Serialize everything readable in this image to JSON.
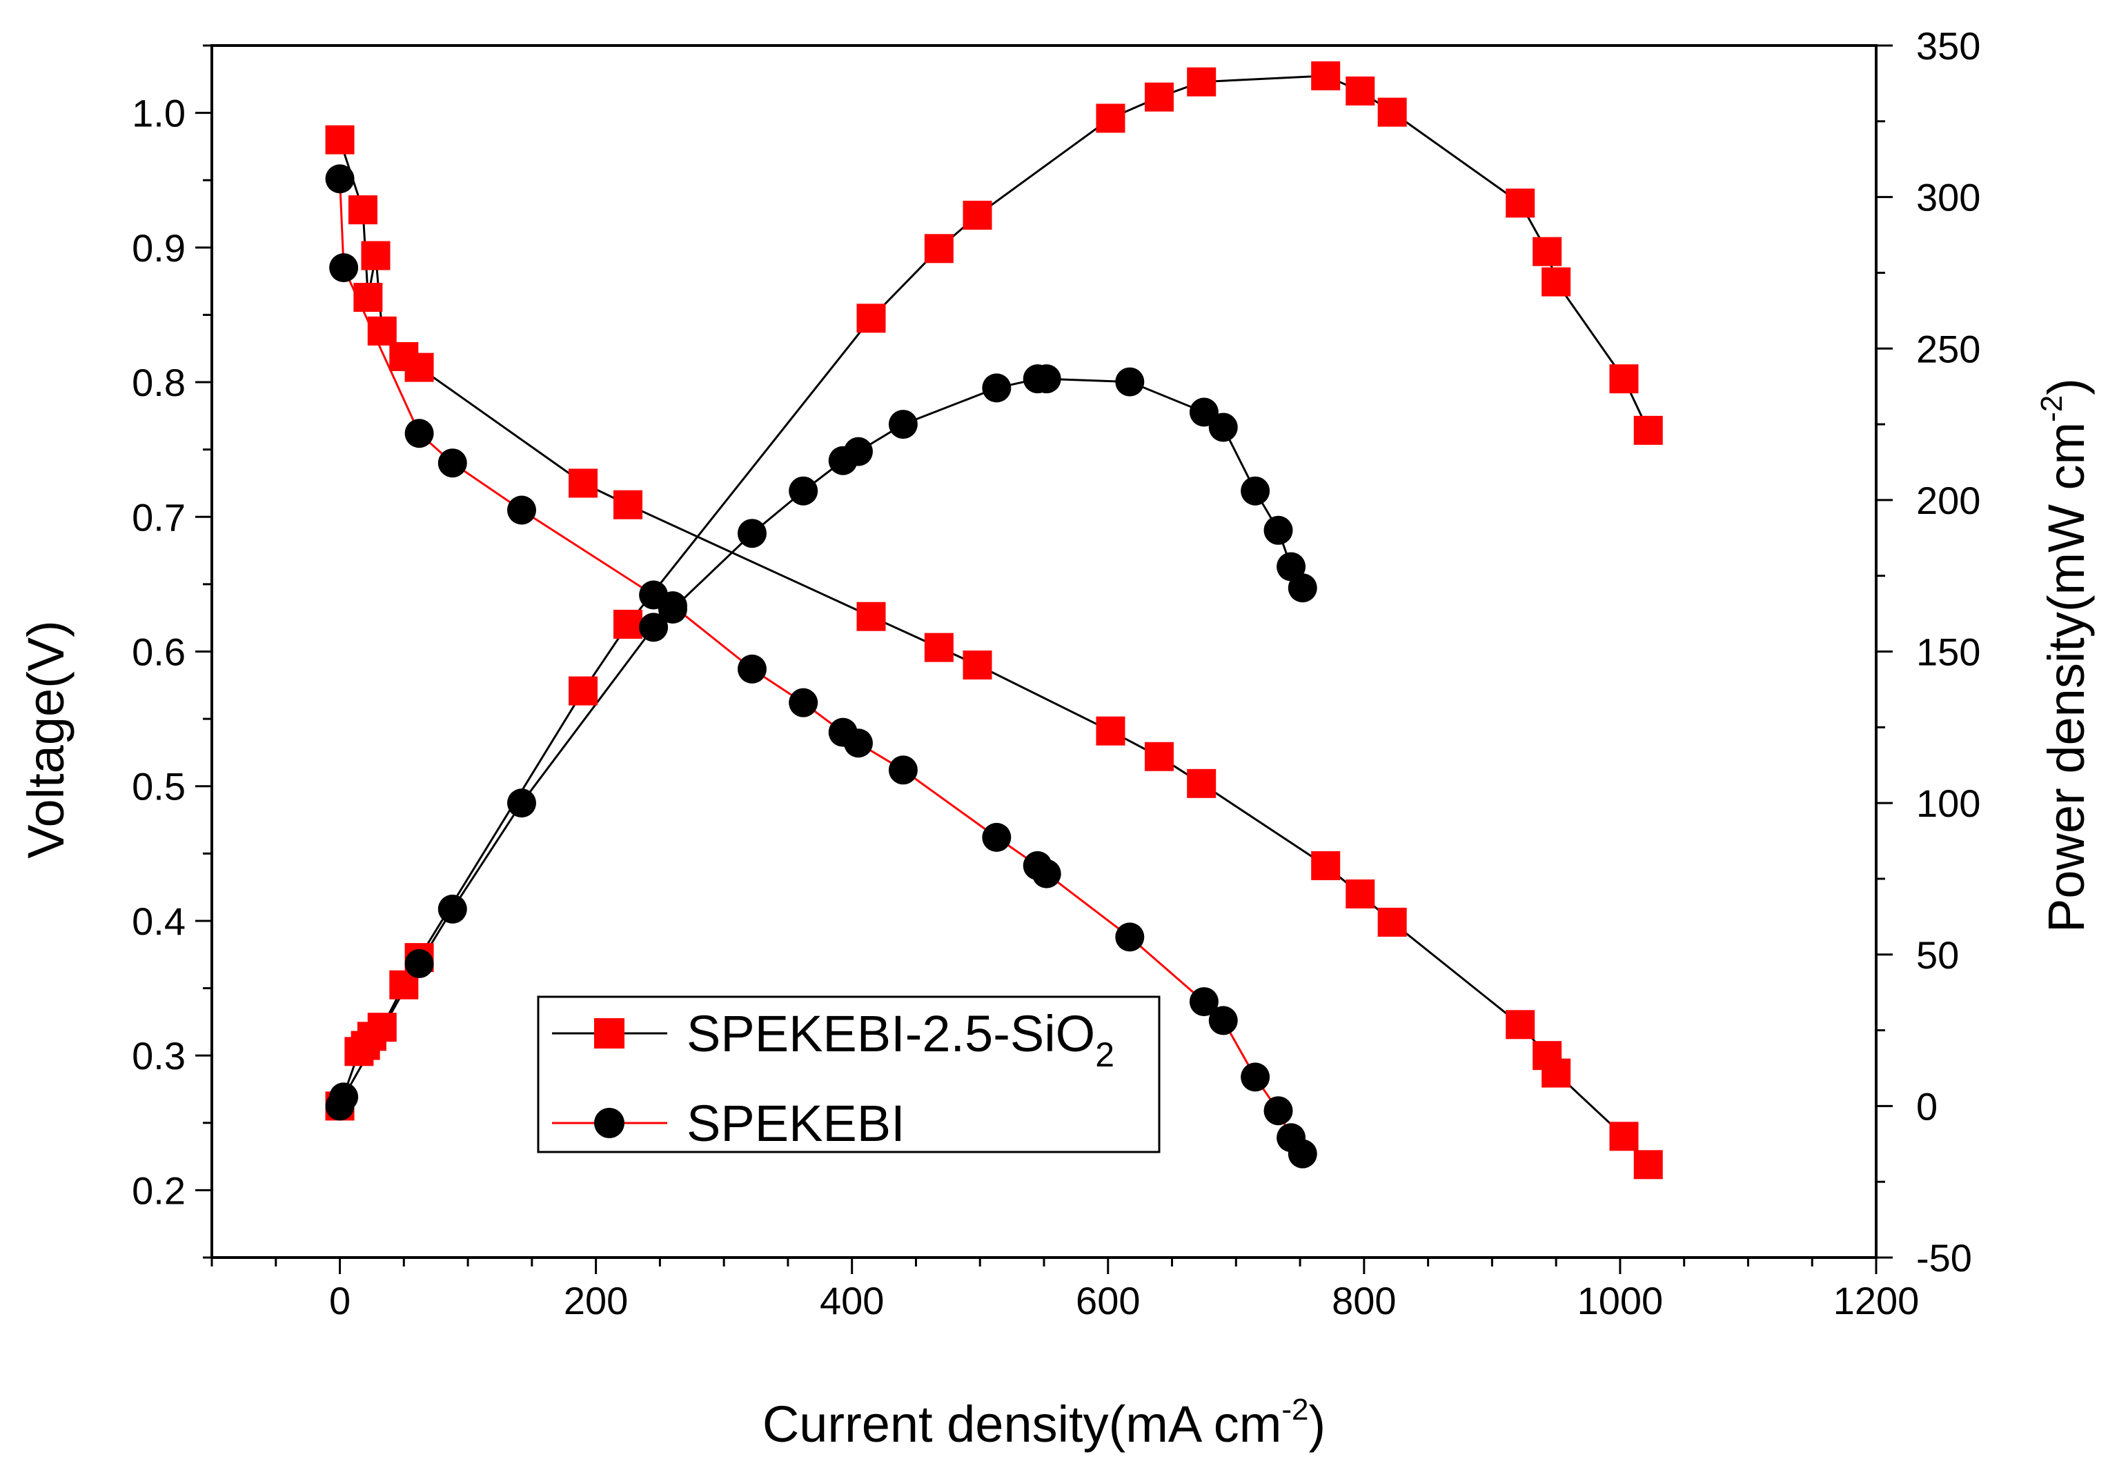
{
  "chart_data": {
    "type": "line",
    "xlabel": "Current density(mA cm",
    "xlabel_sup": "-2",
    "xlabel_end": ")",
    "ylabel": "Voltage(V)",
    "y2label": "Power density(mW cm",
    "y2label_sup": "-2",
    "y2label_end": ")",
    "xlim": [
      -100,
      1200
    ],
    "ylim": [
      0.15,
      1.05
    ],
    "y2lim": [
      -50,
      350
    ],
    "xticks": [
      0,
      200,
      400,
      600,
      800,
      1000,
      1200
    ],
    "yticks": [
      0.2,
      0.3,
      0.4,
      0.5,
      0.6,
      0.7,
      0.8,
      0.9,
      1.0
    ],
    "y2ticks": [
      -50,
      0,
      50,
      100,
      150,
      200,
      250,
      300,
      350
    ],
    "legend_position": "bottom-center",
    "legend": [
      {
        "label": "SPEKEBI-2.5-SiO",
        "sub": "2",
        "marker": "square",
        "marker_color": "#ff0000",
        "line_color": "#000000"
      },
      {
        "label": "SPEKEBI",
        "marker": "circle",
        "marker_color": "#000000",
        "line_color": "#ff0000"
      }
    ],
    "series": [
      {
        "name": "SPEKEBI-2.5-SiO2 voltage",
        "axis": "left",
        "marker": "square",
        "marker_color": "#ff0000",
        "line_color": "#000000",
        "x": [
          0,
          18,
          22,
          28,
          33,
          50,
          62,
          190,
          225,
          415,
          468,
          498,
          602,
          640,
          673,
          770,
          797,
          822,
          922,
          943,
          950,
          1003,
          1022
        ],
        "y": [
          0.98,
          0.928,
          0.863,
          0.894,
          0.838,
          0.819,
          0.811,
          0.725,
          0.709,
          0.626,
          0.603,
          0.59,
          0.541,
          0.522,
          0.502,
          0.441,
          0.42,
          0.399,
          0.323,
          0.3,
          0.287,
          0.24,
          0.219
        ]
      },
      {
        "name": "SPEKEBI-2.5-SiO2 power",
        "axis": "right",
        "marker": "square",
        "marker_color": "#ff0000",
        "line_color": "#000000",
        "x": [
          0,
          15,
          20,
          25,
          33,
          50,
          62,
          190,
          225,
          415,
          468,
          498,
          602,
          640,
          673,
          770,
          797,
          822,
          922,
          943,
          950,
          1003,
          1022
        ],
        "y": [
          0,
          18,
          20,
          23,
          26,
          40,
          49,
          137,
          159,
          260,
          283,
          294,
          326,
          333,
          338,
          340,
          335,
          328,
          298,
          282,
          272,
          240,
          223
        ]
      },
      {
        "name": "SPEKEBI voltage",
        "axis": "left",
        "marker": "circle",
        "marker_color": "#000000",
        "line_color": "#ff0000",
        "x": [
          0,
          3,
          62,
          88,
          142,
          245,
          260,
          322,
          362,
          393,
          405,
          440,
          513,
          545,
          552,
          617,
          675,
          690,
          715,
          733,
          743,
          752
        ],
        "y": [
          0.951,
          0.885,
          0.762,
          0.74,
          0.705,
          0.642,
          0.634,
          0.587,
          0.562,
          0.54,
          0.532,
          0.512,
          0.462,
          0.441,
          0.435,
          0.388,
          0.34,
          0.326,
          0.284,
          0.259,
          0.239,
          0.227
        ]
      },
      {
        "name": "SPEKEBI power",
        "axis": "right",
        "marker": "circle",
        "marker_color": "#000000",
        "line_color": "#000000",
        "x": [
          0,
          3,
          62,
          88,
          142,
          245,
          260,
          322,
          362,
          393,
          405,
          440,
          513,
          545,
          552,
          617,
          675,
          690,
          715,
          733,
          743,
          752
        ],
        "y": [
          0,
          3,
          47,
          65,
          100,
          158,
          164,
          189,
          203,
          213,
          216,
          225,
          237,
          240,
          240,
          239,
          229,
          224,
          203,
          190,
          178,
          171
        ]
      }
    ]
  }
}
